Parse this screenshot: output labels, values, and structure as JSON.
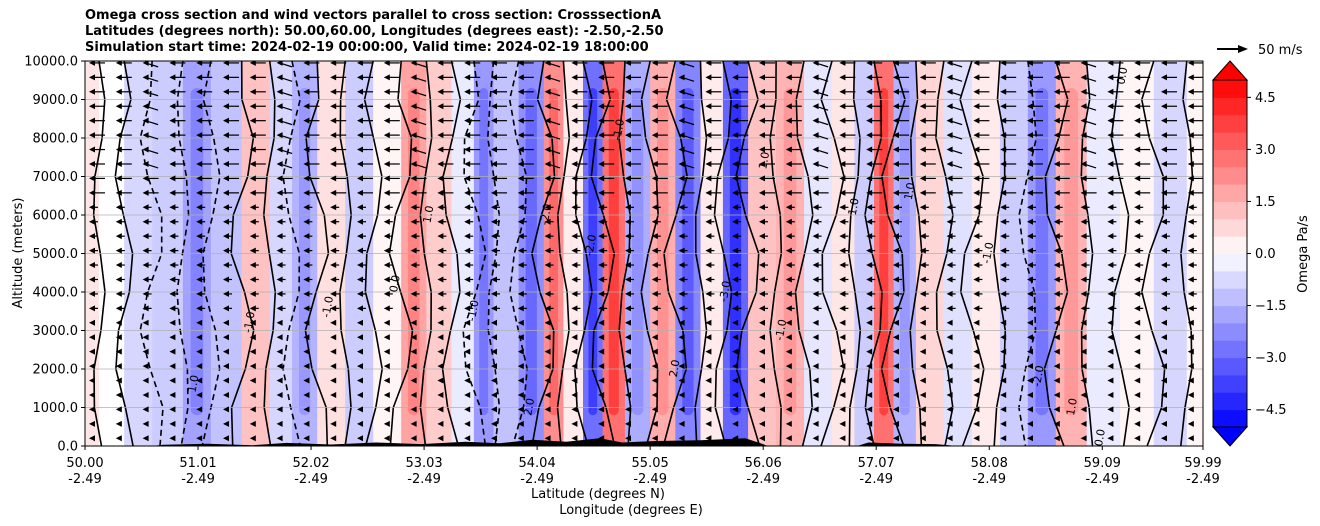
{
  "chart_data": {
    "type": "contour",
    "title_lines": [
      "Omega cross section and wind vectors parallel to cross section: CrosssectionA",
      "Latitudes (degrees north): 50.00,60.00, Longitudes (degrees east): -2.50,-2.50",
      "Simulation start time: 2024-02-19 00:00:00, Valid time: 2024-02-19 18:00:00"
    ],
    "ylabel": "Altitude (meters)",
    "xlabel_lat": "Latitude (degrees N)",
    "xlabel_lon": "Longitude (degrees E)",
    "ylim": [
      0,
      10000
    ],
    "xlim": [
      50.0,
      59.99
    ],
    "y_ticks": [
      {
        "value": 0,
        "label": "0.0"
      },
      {
        "value": 1000,
        "label": "1000.0"
      },
      {
        "value": 2000,
        "label": "2000.0"
      },
      {
        "value": 3000,
        "label": "3000.0"
      },
      {
        "value": 4000,
        "label": "4000.0"
      },
      {
        "value": 5000,
        "label": "5000.0"
      },
      {
        "value": 6000,
        "label": "6000.0"
      },
      {
        "value": 7000,
        "label": "7000.0"
      },
      {
        "value": 8000,
        "label": "8000.0"
      },
      {
        "value": 9000,
        "label": "9000.0"
      },
      {
        "value": 10000,
        "label": "10000.0"
      }
    ],
    "x_ticks": [
      {
        "value": 50.0,
        "lat": "50.00",
        "lon": "-2.49"
      },
      {
        "value": 51.01,
        "lat": "51.01",
        "lon": "-2.49"
      },
      {
        "value": 52.02,
        "lat": "52.02",
        "lon": "-2.49"
      },
      {
        "value": 53.03,
        "lat": "53.03",
        "lon": "-2.49"
      },
      {
        "value": 54.04,
        "lat": "54.04",
        "lon": "-2.49"
      },
      {
        "value": 55.05,
        "lat": "55.05",
        "lon": "-2.49"
      },
      {
        "value": 56.06,
        "lat": "56.06",
        "lon": "-2.49"
      },
      {
        "value": 57.07,
        "lat": "57.07",
        "lon": "-2.49"
      },
      {
        "value": 58.08,
        "lat": "58.08",
        "lon": "-2.49"
      },
      {
        "value": 59.09,
        "lat": "59.09",
        "lon": "-2.49"
      },
      {
        "value": 59.99,
        "lat": "59.99",
        "lon": "-2.49"
      }
    ],
    "colorbar": {
      "label": "Omega Pa/s",
      "range": [
        -5,
        5
      ],
      "ticks": [
        {
          "value": 4.5,
          "label": "4.5"
        },
        {
          "value": 3.0,
          "label": "3.0"
        },
        {
          "value": 1.5,
          "label": "1.5"
        },
        {
          "value": 0.0,
          "label": "0.0"
        },
        {
          "value": -1.5,
          "label": "−1.5"
        },
        {
          "value": -3.0,
          "label": "−3.0"
        },
        {
          "value": -4.5,
          "label": "−4.5"
        }
      ]
    },
    "wind_reference": "50 m/s",
    "omega_bands": [
      {
        "lat": 50.0,
        "omega": 0.5
      },
      {
        "lat": 50.25,
        "omega": 0.0
      },
      {
        "lat": 50.45,
        "omega": -0.8
      },
      {
        "lat": 50.75,
        "omega": -1.0
      },
      {
        "lat": 51.0,
        "omega": -1.8
      },
      {
        "lat": 51.25,
        "omega": -1.2
      },
      {
        "lat": 51.55,
        "omega": 1.2
      },
      {
        "lat": 51.75,
        "omega": -0.8
      },
      {
        "lat": 51.95,
        "omega": -1.5
      },
      {
        "lat": 52.2,
        "omega": 0.6
      },
      {
        "lat": 52.45,
        "omega": -1.0
      },
      {
        "lat": 52.7,
        "omega": 0.2
      },
      {
        "lat": 52.95,
        "omega": 1.8
      },
      {
        "lat": 53.15,
        "omega": 1.0
      },
      {
        "lat": 53.4,
        "omega": -0.4
      },
      {
        "lat": 53.55,
        "omega": -2.0
      },
      {
        "lat": 53.75,
        "omega": -1.2
      },
      {
        "lat": 54.0,
        "omega": -2.2
      },
      {
        "lat": 54.2,
        "omega": 2.2
      },
      {
        "lat": 54.35,
        "omega": 0.4
      },
      {
        "lat": 54.55,
        "omega": -2.8
      },
      {
        "lat": 54.7,
        "omega": 2.8
      },
      {
        "lat": 54.95,
        "omega": -1.6
      },
      {
        "lat": 55.15,
        "omega": 1.6
      },
      {
        "lat": 55.4,
        "omega": -2.4
      },
      {
        "lat": 55.6,
        "omega": 0.4
      },
      {
        "lat": 55.8,
        "omega": -3.0
      },
      {
        "lat": 56.05,
        "omega": 1.2
      },
      {
        "lat": 56.3,
        "omega": 1.5
      },
      {
        "lat": 56.55,
        "omega": -0.5
      },
      {
        "lat": 56.8,
        "omega": 0.5
      },
      {
        "lat": 56.95,
        "omega": -1.0
      },
      {
        "lat": 57.15,
        "omega": 2.8
      },
      {
        "lat": 57.3,
        "omega": -1.5
      },
      {
        "lat": 57.55,
        "omega": 0.8
      },
      {
        "lat": 57.8,
        "omega": -0.6
      },
      {
        "lat": 58.05,
        "omega": 0.4
      },
      {
        "lat": 58.3,
        "omega": -1.0
      },
      {
        "lat": 58.55,
        "omega": -2.0
      },
      {
        "lat": 58.8,
        "omega": 1.5
      },
      {
        "lat": 59.1,
        "omega": -0.4
      },
      {
        "lat": 59.4,
        "omega": 0.2
      },
      {
        "lat": 59.7,
        "omega": -0.8
      },
      {
        "lat": 59.99,
        "omega": 0.2
      }
    ],
    "contour_labels": [
      {
        "lat": 51.0,
        "alt": 1600,
        "text": "1.0"
      },
      {
        "lat": 51.5,
        "alt": 3200,
        "text": "-1.0"
      },
      {
        "lat": 52.2,
        "alt": 3600,
        "text": "-1.0"
      },
      {
        "lat": 52.8,
        "alt": 4200,
        "text": "0.0"
      },
      {
        "lat": 53.1,
        "alt": 6000,
        "text": "1.0"
      },
      {
        "lat": 53.5,
        "alt": 3500,
        "text": "-1.0"
      },
      {
        "lat": 54.0,
        "alt": 1000,
        "text": "2.0"
      },
      {
        "lat": 54.15,
        "alt": 6000,
        "text": "-2.0"
      },
      {
        "lat": 54.55,
        "alt": 5200,
        "text": "-2.0"
      },
      {
        "lat": 54.8,
        "alt": 8200,
        "text": "-1.0"
      },
      {
        "lat": 55.3,
        "alt": 2000,
        "text": "2.0"
      },
      {
        "lat": 55.75,
        "alt": 4000,
        "text": "-3.0"
      },
      {
        "lat": 56.1,
        "alt": 7400,
        "text": "1.0"
      },
      {
        "lat": 56.25,
        "alt": 3000,
        "text": "-1.0"
      },
      {
        "lat": 56.9,
        "alt": 6200,
        "text": "1.0"
      },
      {
        "lat": 57.4,
        "alt": 6600,
        "text": "1.0"
      },
      {
        "lat": 58.1,
        "alt": 5000,
        "text": "-1.0"
      },
      {
        "lat": 58.55,
        "alt": 1800,
        "text": "-2.0"
      },
      {
        "lat": 58.85,
        "alt": 1000,
        "text": "1.0"
      },
      {
        "lat": 59.1,
        "alt": 200,
        "text": "0.0"
      },
      {
        "lat": 59.3,
        "alt": 9600,
        "text": "0.0"
      }
    ],
    "wind": "horizontal wind vectors parallel to cross section, pointing toward lower latitudes throughout"
  }
}
